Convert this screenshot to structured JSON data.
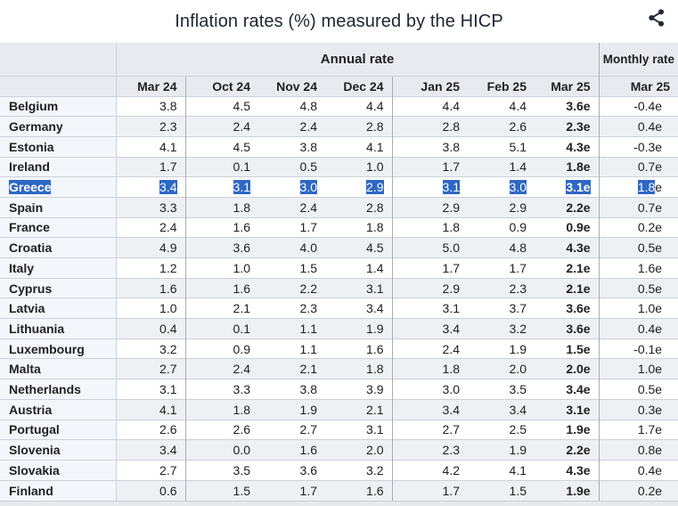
{
  "header": {
    "title": "Inflation rates (%) measured by the HICP",
    "share_icon": "share-icon"
  },
  "colors": {
    "selection_blue": "#2e68c5",
    "header_bg": "#e9eaf0",
    "country_col_bg": "#f3f6fb",
    "stripe_bg": "#eef0f3",
    "row_border": "#ccd1d9",
    "group_border": "#a6aeb9",
    "text": "#202122"
  },
  "chart_data": {
    "type": "table",
    "title": "Inflation rates (%) measured by the HICP",
    "unit": "%",
    "column_groups": [
      {
        "label": "Annual rate",
        "span": 7
      },
      {
        "label": "Monthly rate",
        "span": 1
      }
    ],
    "columns": [
      "Mar 24",
      "Oct 24",
      "Nov 24",
      "Dec 24",
      "Jan 25",
      "Feb 25",
      "Mar 25",
      "Mar 25"
    ],
    "estimate_suffix": "e",
    "selected_row": "Greece",
    "rows": [
      {
        "country": "Belgium",
        "values": [
          "3.8",
          "4.5",
          "4.8",
          "4.4",
          "4.4",
          "4.4",
          "3.6e",
          "-0.4e"
        ]
      },
      {
        "country": "Germany",
        "values": [
          "2.3",
          "2.4",
          "2.4",
          "2.8",
          "2.8",
          "2.6",
          "2.3e",
          "0.4e"
        ]
      },
      {
        "country": "Estonia",
        "values": [
          "4.1",
          "4.5",
          "3.8",
          "4.1",
          "3.8",
          "5.1",
          "4.3e",
          "-0.3e"
        ]
      },
      {
        "country": "Ireland",
        "values": [
          "1.7",
          "0.1",
          "0.5",
          "1.0",
          "1.7",
          "1.4",
          "1.8e",
          "0.7e"
        ]
      },
      {
        "country": "Greece",
        "values": [
          "3.4",
          "3.1",
          "3.0",
          "2.9",
          "3.1",
          "3.0",
          "3.1e",
          "1.8e"
        ],
        "selected": true
      },
      {
        "country": "Spain",
        "values": [
          "3.3",
          "1.8",
          "2.4",
          "2.8",
          "2.9",
          "2.9",
          "2.2e",
          "0.7e"
        ]
      },
      {
        "country": "France",
        "values": [
          "2.4",
          "1.6",
          "1.7",
          "1.8",
          "1.8",
          "0.9",
          "0.9e",
          "0.2e"
        ]
      },
      {
        "country": "Croatia",
        "values": [
          "4.9",
          "3.6",
          "4.0",
          "4.5",
          "5.0",
          "4.8",
          "4.3e",
          "0.5e"
        ]
      },
      {
        "country": "Italy",
        "values": [
          "1.2",
          "1.0",
          "1.5",
          "1.4",
          "1.7",
          "1.7",
          "2.1e",
          "1.6e"
        ]
      },
      {
        "country": "Cyprus",
        "values": [
          "1.6",
          "1.6",
          "2.2",
          "3.1",
          "2.9",
          "2.3",
          "2.1e",
          "0.5e"
        ]
      },
      {
        "country": "Latvia",
        "values": [
          "1.0",
          "2.1",
          "2.3",
          "3.4",
          "3.1",
          "3.7",
          "3.6e",
          "1.0e"
        ]
      },
      {
        "country": "Lithuania",
        "values": [
          "0.4",
          "0.1",
          "1.1",
          "1.9",
          "3.4",
          "3.2",
          "3.6e",
          "0.4e"
        ]
      },
      {
        "country": "Luxembourg",
        "values": [
          "3.2",
          "0.9",
          "1.1",
          "1.6",
          "2.4",
          "1.9",
          "1.5e",
          "-0.1e"
        ]
      },
      {
        "country": "Malta",
        "values": [
          "2.7",
          "2.4",
          "2.1",
          "1.8",
          "1.8",
          "2.0",
          "2.0e",
          "1.0e"
        ]
      },
      {
        "country": "Netherlands",
        "values": [
          "3.1",
          "3.3",
          "3.8",
          "3.9",
          "3.0",
          "3.5",
          "3.4e",
          "0.5e"
        ]
      },
      {
        "country": "Austria",
        "values": [
          "4.1",
          "1.8",
          "1.9",
          "2.1",
          "3.4",
          "3.4",
          "3.1e",
          "0.3e"
        ]
      },
      {
        "country": "Portugal",
        "values": [
          "2.6",
          "2.6",
          "2.7",
          "3.1",
          "2.7",
          "2.5",
          "1.9e",
          "1.7e"
        ]
      },
      {
        "country": "Slovenia",
        "values": [
          "3.4",
          "0.0",
          "1.6",
          "2.0",
          "2.3",
          "1.9",
          "2.2e",
          "0.8e"
        ]
      },
      {
        "country": "Slovakia",
        "values": [
          "2.7",
          "3.5",
          "3.6",
          "3.2",
          "4.2",
          "4.1",
          "4.3e",
          "0.4e"
        ]
      },
      {
        "country": "Finland",
        "values": [
          "0.6",
          "1.5",
          "1.7",
          "1.6",
          "1.7",
          "1.5",
          "1.9e",
          "0.2e"
        ]
      }
    ]
  }
}
